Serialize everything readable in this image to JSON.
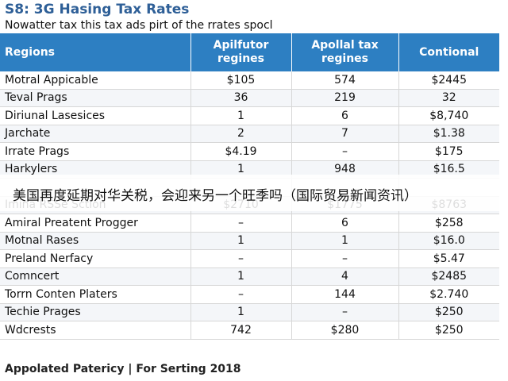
{
  "document": {
    "title": "S8: 3G Hasing Tax Rates",
    "subtitle": "Nowatter tax this tax ads pirt of the rrates spocl",
    "footer": "Appolated Patericy | For Serting 2018"
  },
  "overlay": {
    "caption": "美国再度延期对华关税，会迎来另一个旺季吗（国际贸易新闻资讯）"
  },
  "table": {
    "headers": [
      "Regions",
      "Apilfutor regines",
      "Apollal tax regines",
      "Contional"
    ],
    "rows": [
      [
        "Motral Appicable",
        "$105",
        "574",
        "$2445"
      ],
      [
        "Teval Prags",
        "36",
        "219",
        "32"
      ],
      [
        "Diriunal Lasesices",
        "1",
        "6",
        "$8,740"
      ],
      [
        "Jarchate",
        "2",
        "7",
        "$1.38"
      ],
      [
        "Irrate Prags",
        "$4.19",
        "–",
        "$175"
      ],
      [
        "Harkylers",
        "1",
        "948",
        "$16.5"
      ],
      [
        "",
        "",
        "",
        ""
      ],
      [
        "Imina RSSe Sction",
        "$2710",
        "$1775",
        "$8763"
      ],
      [
        "Amiral Preatent Progger",
        "–",
        "6",
        "$258"
      ],
      [
        "Motnal Rases",
        "1",
        "1",
        "$16.0"
      ],
      [
        "Preland Nerfacy",
        "–",
        "–",
        "$5.47"
      ],
      [
        "Comncert",
        "1",
        "4",
        "$2485"
      ],
      [
        "Torrn Conten Platers",
        "–",
        "144",
        "$2.740"
      ],
      [
        "Techie Prages",
        "1",
        "–",
        "$250"
      ],
      [
        "Wdcrests",
        "742",
        "$280",
        "$250"
      ]
    ]
  }
}
